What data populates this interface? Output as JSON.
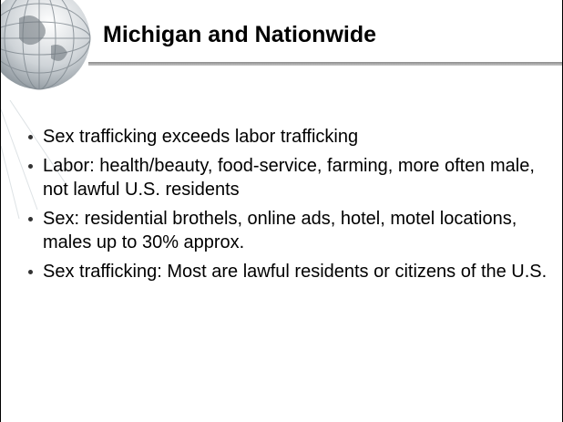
{
  "title": "Michigan and Nationwide",
  "bullets": [
    "Sex trafficking exceeds labor trafficking",
    "Labor: health/beauty, food-service, farming, more often male, not lawful U.S. residents",
    "Sex: residential brothels, online ads, hotel, motel locations, males up to 30% approx.",
    "Sex trafficking: Most are lawful residents or citizens of the U.S."
  ]
}
